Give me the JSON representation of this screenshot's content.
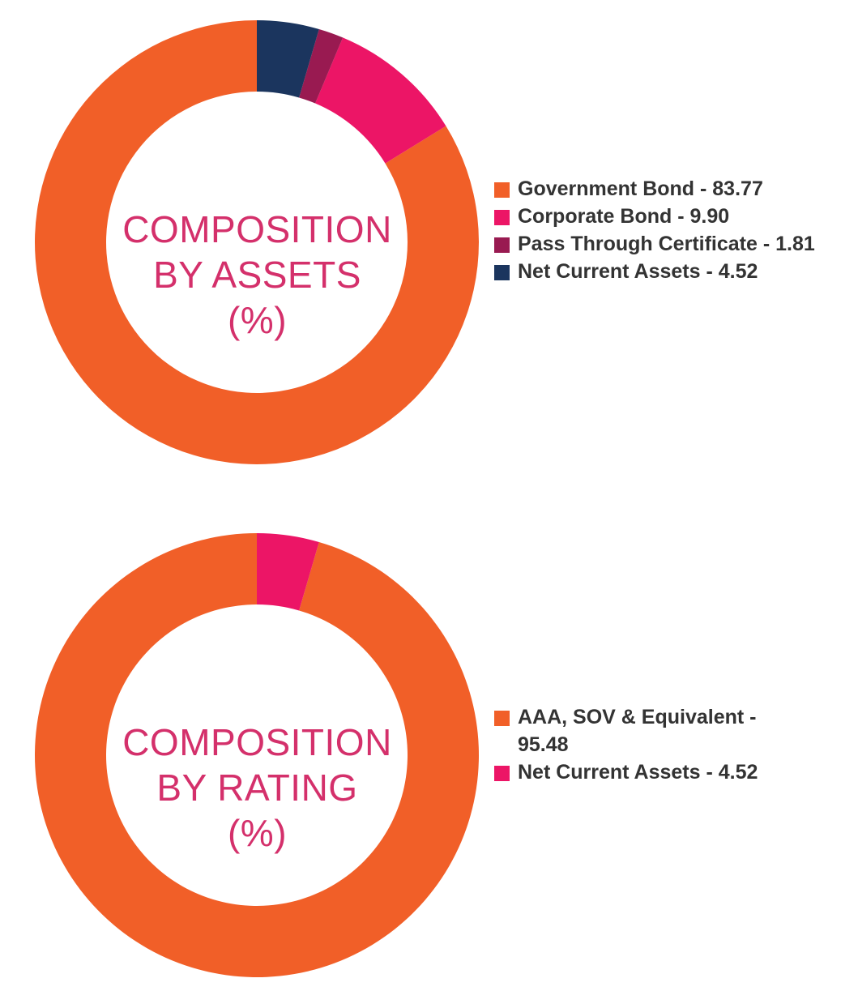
{
  "chart_data": [
    {
      "type": "pie",
      "title": "COMPOSITION BY ASSETS (%)",
      "title_lines": [
        "COMPOSITION",
        "BY ASSETS",
        "(%)"
      ],
      "legend_position": "right",
      "slices": [
        {
          "label": "Government Bond - 83.77",
          "value": 83.77,
          "color": "#f15f28"
        },
        {
          "label": "Corporate Bond - 9.90",
          "value": 9.9,
          "color": "#ec1566"
        },
        {
          "label": "Pass Through Certificate - 1.81",
          "value": 1.81,
          "color": "#991a51"
        },
        {
          "label": "Net Current Assets - 4.52",
          "value": 4.52,
          "color": "#1b355e"
        }
      ]
    },
    {
      "type": "pie",
      "title": "COMPOSITION BY RATING (%)",
      "title_lines": [
        "COMPOSITION",
        "BY RATING",
        "(%)"
      ],
      "legend_position": "right",
      "slices": [
        {
          "label": "AAA, SOV & Equivalent - 95.48",
          "value": 95.48,
          "color": "#f15f28"
        },
        {
          "label": "Net Current Assets - 4.52",
          "value": 4.52,
          "color": "#ec1566"
        }
      ]
    }
  ]
}
